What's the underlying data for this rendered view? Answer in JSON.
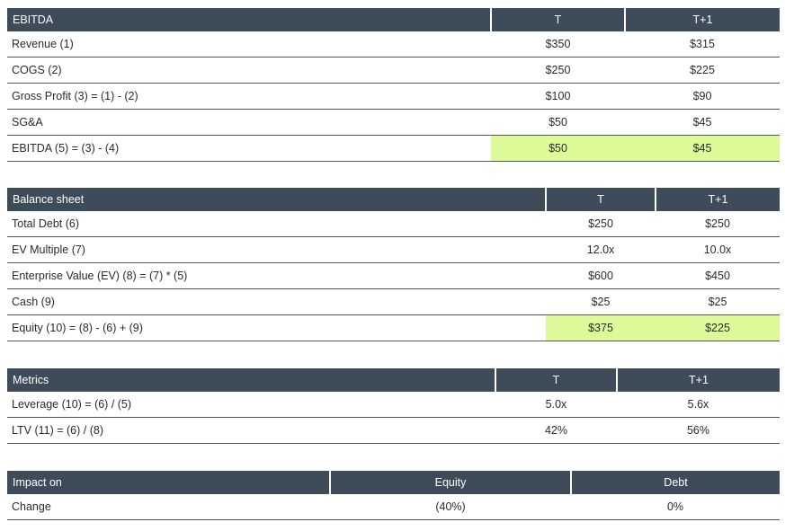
{
  "tables": [
    {
      "header": [
        "EBITDA",
        "T",
        "T+1"
      ],
      "rows": [
        [
          "Revenue (1)",
          "$350",
          "$315"
        ],
        [
          "COGS (2)",
          "$250",
          "$225"
        ],
        [
          "Gross Profit (3) = (1) - (2)",
          "$100",
          "$90"
        ],
        [
          "SG&A",
          "$50",
          "$45"
        ],
        [
          "EBITDA (5) = (3) - (4)",
          "$50",
          "$45"
        ]
      ]
    },
    {
      "header": [
        "Balance sheet",
        "T",
        "T+1"
      ],
      "rows": [
        [
          "Total Debt (6)",
          "$250",
          "$250"
        ],
        [
          "EV Multiple (7)",
          "12.0x",
          "10.0x"
        ],
        [
          "Enterprise Value (EV) (8) = (7) * (5)",
          "$600",
          "$450"
        ],
        [
          "Cash (9)",
          "$25",
          "$25"
        ],
        [
          "Equity (10) = (8) - (6) + (9)",
          "$375",
          "$225"
        ]
      ]
    },
    {
      "header": [
        "Metrics",
        "T",
        "T+1"
      ],
      "rows": [
        [
          "Leverage (10) = (6) / (5)",
          "5.0x",
          "5.6x"
        ],
        [
          "LTV (11) = (6) / (8)",
          "42%",
          "56%"
        ]
      ]
    },
    {
      "header": [
        "Impact on",
        "Equity",
        "Debt"
      ],
      "rows": [
        [
          "Change",
          "(40%)",
          "0%"
        ]
      ]
    }
  ]
}
